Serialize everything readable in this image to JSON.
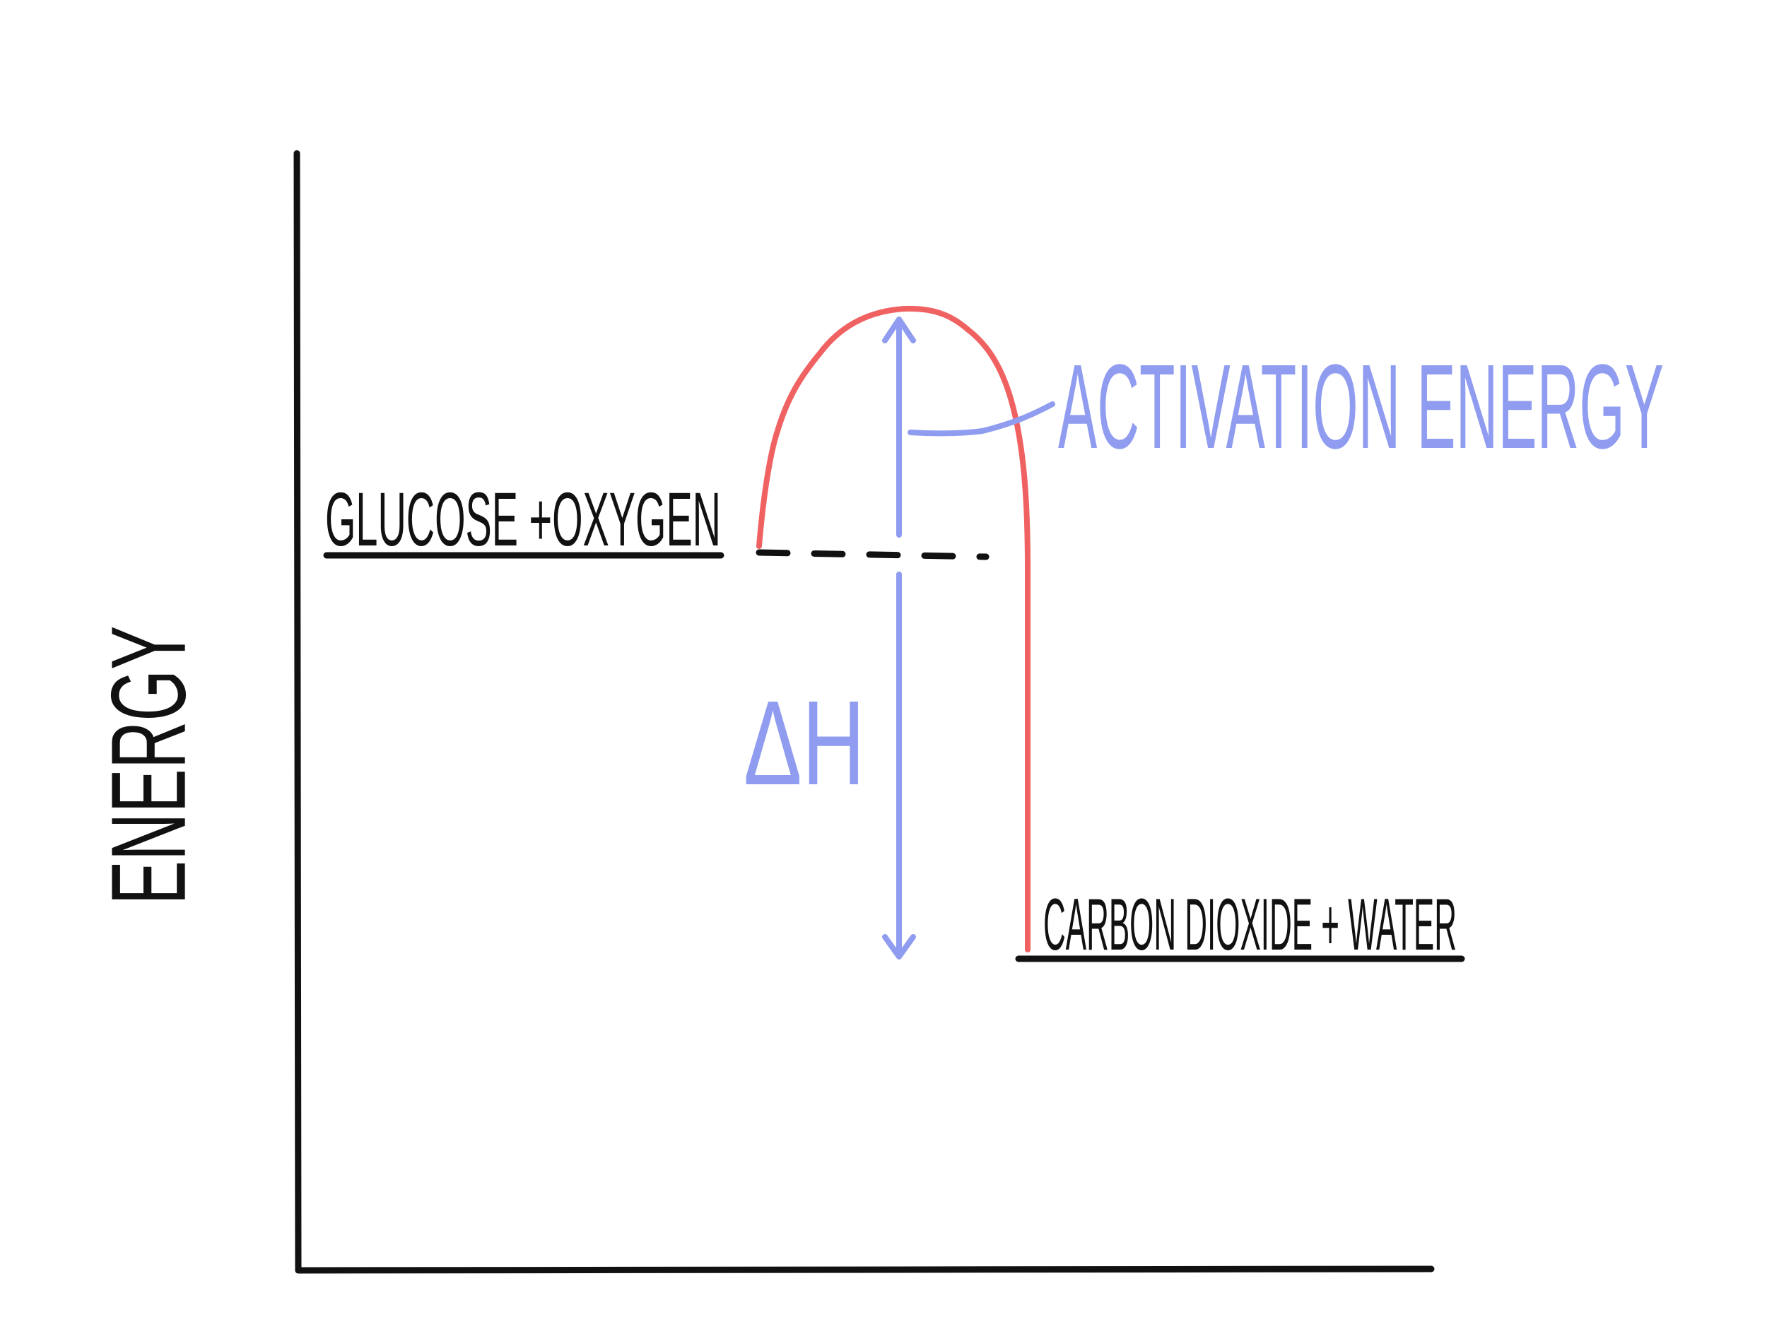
{
  "axis_label": "ENERGY",
  "reactants": "GLUCOSE +OXYGEN",
  "products": "CARBON DIOXIDE + WATER",
  "activation_energy": "ACTIVATION ENERGY",
  "enthalpy_change": "ΔH"
}
